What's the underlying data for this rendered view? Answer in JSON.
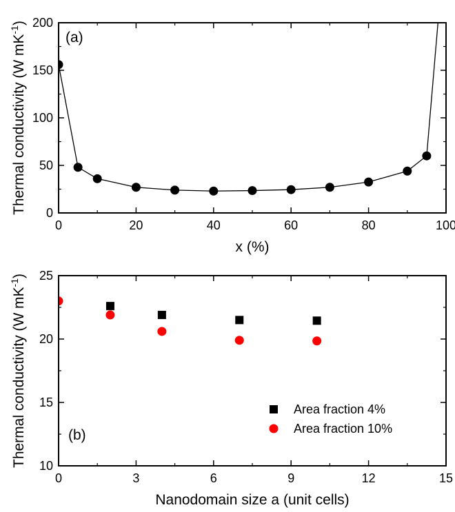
{
  "chart_data": [
    {
      "type": "line",
      "panel_label": "(a)",
      "xlabel": "x (%)",
      "ylabel": "Thermal conductivity (W mK",
      "ylabel_superscript": "-1",
      "ylabel_close": ")",
      "xlim": [
        0,
        100
      ],
      "ylim": [
        0,
        200
      ],
      "xticks": [
        0,
        20,
        40,
        60,
        80,
        100
      ],
      "yticks": [
        0,
        50,
        100,
        150,
        200
      ],
      "grid": false,
      "series": [
        {
          "marker": "circle",
          "color": "#000000",
          "x": [
            0,
            5,
            10,
            20,
            30,
            40,
            50,
            60,
            70,
            80,
            90,
            95,
            100
          ],
          "y": [
            156,
            48,
            36,
            27,
            24,
            23,
            23.5,
            24.5,
            27,
            32.5,
            44,
            60,
            300
          ]
        }
      ]
    },
    {
      "type": "scatter",
      "panel_label": "(b)",
      "xlabel": "Nanodomain size a (unit cells)",
      "ylabel": "Thermal conductivity (W mK",
      "ylabel_superscript": "-1",
      "ylabel_close": ")",
      "xlim": [
        0,
        15
      ],
      "ylim": [
        10,
        25
      ],
      "xticks": [
        0,
        3,
        6,
        9,
        12,
        15
      ],
      "yticks": [
        10,
        15,
        20,
        25
      ],
      "grid": false,
      "legend_position": "bottom-right",
      "series": [
        {
          "name": "Area fraction 4%",
          "marker": "square",
          "color": "#000000",
          "x": [
            2,
            4,
            7,
            10
          ],
          "y": [
            22.6,
            21.9,
            21.5,
            21.45
          ]
        },
        {
          "name": "Area fraction 10%",
          "marker": "circle",
          "color": "#ff0000",
          "x": [
            0,
            2,
            4,
            7,
            10
          ],
          "y": [
            23.0,
            21.9,
            20.6,
            19.9,
            19.85
          ]
        }
      ]
    }
  ]
}
